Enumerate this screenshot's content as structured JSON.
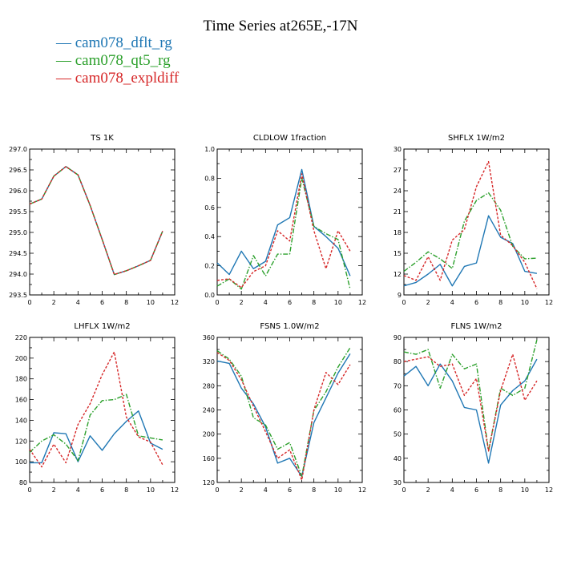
{
  "title": "Time Series at265E,-17N",
  "legend": [
    {
      "label": "— cam078_dflt_rg",
      "color": "#1f77b4"
    },
    {
      "label": "— cam078_qt5_rg",
      "color": "#2ca02c"
    },
    {
      "label": "— cam078_expldiff",
      "color": "#d62728"
    }
  ],
  "chart_data": [
    {
      "type": "line",
      "title": "TS   1K",
      "x": [
        0,
        1,
        2,
        3,
        4,
        5,
        6,
        7,
        8,
        9,
        10,
        11
      ],
      "xlim": [
        0,
        12
      ],
      "xticks": [
        0,
        2,
        4,
        6,
        8,
        10,
        12
      ],
      "ylim": [
        293.5,
        297.0
      ],
      "yticks": [
        "293.5",
        "294.0",
        "294.5",
        "295.0",
        "295.5",
        "296.0",
        "296.5",
        "297.0"
      ],
      "series": [
        {
          "name": "cam078_dflt_rg",
          "color": "#1f77b4",
          "style": "solid",
          "values": [
            295.68,
            295.8,
            296.35,
            296.58,
            296.38,
            295.65,
            294.83,
            293.99,
            294.08,
            294.2,
            294.33,
            295.03
          ]
        },
        {
          "name": "cam078_qt5_rg",
          "color": "#2ca02c",
          "style": "dashdot",
          "values": [
            295.68,
            295.8,
            296.35,
            296.58,
            296.38,
            295.65,
            294.83,
            293.99,
            294.08,
            294.2,
            294.33,
            295.03
          ]
        },
        {
          "name": "cam078_expldiff",
          "color": "#d62728",
          "style": "dash",
          "values": [
            295.68,
            295.8,
            296.35,
            296.58,
            296.38,
            295.65,
            294.83,
            293.99,
            294.08,
            294.2,
            294.33,
            295.03
          ]
        }
      ]
    },
    {
      "type": "line",
      "title": "CLDLOW   1fraction",
      "x": [
        0,
        1,
        2,
        3,
        4,
        5,
        6,
        7,
        8,
        9,
        10,
        11
      ],
      "xlim": [
        0,
        12
      ],
      "xticks": [
        0,
        2,
        4,
        6,
        8,
        10,
        12
      ],
      "ylim": [
        0.0,
        1.0
      ],
      "yticks": [
        "0.0",
        "0.2",
        "0.4",
        "0.6",
        "0.8",
        "1.0"
      ],
      "series": [
        {
          "name": "cam078_dflt_rg",
          "color": "#1f77b4",
          "style": "solid",
          "values": [
            0.22,
            0.14,
            0.3,
            0.18,
            0.23,
            0.48,
            0.53,
            0.86,
            0.47,
            0.4,
            0.32,
            0.13
          ]
        },
        {
          "name": "cam078_qt5_rg",
          "color": "#2ca02c",
          "style": "dashdot",
          "values": [
            0.06,
            0.11,
            0.04,
            0.27,
            0.13,
            0.28,
            0.28,
            0.8,
            0.47,
            0.42,
            0.38,
            0.04
          ]
        },
        {
          "name": "cam078_expldiff",
          "color": "#d62728",
          "style": "dash",
          "values": [
            0.1,
            0.11,
            0.05,
            0.16,
            0.2,
            0.44,
            0.37,
            0.83,
            0.44,
            0.18,
            0.44,
            0.3
          ]
        }
      ]
    },
    {
      "type": "line",
      "title": "SHFLX   1W/m2",
      "x": [
        0,
        1,
        2,
        3,
        4,
        5,
        6,
        7,
        8,
        9,
        10,
        11
      ],
      "xlim": [
        0,
        12
      ],
      "xticks": [
        0,
        2,
        4,
        6,
        8,
        10,
        12
      ],
      "ylim": [
        9,
        30
      ],
      "yticks": [
        "9",
        "12",
        "15",
        "18",
        "21",
        "24",
        "27",
        "30"
      ],
      "series": [
        {
          "name": "cam078_dflt_rg",
          "color": "#1f77b4",
          "style": "solid",
          "values": [
            10.3,
            10.8,
            12.0,
            13.4,
            10.3,
            13.1,
            13.6,
            20.4,
            17.3,
            16.4,
            12.4,
            12.1
          ]
        },
        {
          "name": "cam078_qt5_rg",
          "color": "#2ca02c",
          "style": "dashdot",
          "values": [
            12.4,
            13.7,
            15.2,
            14.2,
            12.8,
            19.6,
            22.6,
            23.7,
            21.2,
            16.0,
            14.2,
            14.3
          ]
        },
        {
          "name": "cam078_expldiff",
          "color": "#d62728",
          "style": "dash",
          "values": [
            11.8,
            11.1,
            14.5,
            11.1,
            16.9,
            18.4,
            24.6,
            28.2,
            17.6,
            16.1,
            13.7,
            9.9
          ]
        }
      ]
    },
    {
      "type": "line",
      "title": "LHFLX   1W/m2",
      "x": [
        0,
        1,
        2,
        3,
        4,
        5,
        6,
        7,
        8,
        9,
        10,
        11
      ],
      "xlim": [
        0,
        12
      ],
      "xticks": [
        0,
        2,
        4,
        6,
        8,
        10,
        12
      ],
      "ylim": [
        80,
        220
      ],
      "yticks": [
        "80",
        "100",
        "120",
        "140",
        "160",
        "180",
        "200",
        "220"
      ],
      "series": [
        {
          "name": "cam078_dflt_rg",
          "color": "#1f77b4",
          "style": "solid",
          "values": [
            99,
            99,
            128,
            127,
            100,
            125,
            111,
            127,
            139,
            149,
            118,
            112
          ]
        },
        {
          "name": "cam078_qt5_rg",
          "color": "#2ca02c",
          "style": "dashdot",
          "values": [
            109,
            120,
            126,
            117,
            101,
            145,
            159,
            160,
            165,
            125,
            123,
            121
          ]
        },
        {
          "name": "cam078_expldiff",
          "color": "#d62728",
          "style": "dash",
          "values": [
            112,
            95,
            117,
            99,
            136,
            156,
            184,
            206,
            143,
            124,
            119,
            97
          ]
        }
      ]
    },
    {
      "type": "line",
      "title": "FSNS   1.0W/m2",
      "x": [
        0,
        1,
        2,
        3,
        4,
        5,
        6,
        7,
        8,
        9,
        10,
        11
      ],
      "xlim": [
        0,
        12
      ],
      "xticks": [
        0,
        2,
        4,
        6,
        8,
        10,
        12
      ],
      "ylim": [
        120,
        360
      ],
      "yticks": [
        "120",
        "160",
        "200",
        "240",
        "280",
        "320",
        "360"
      ],
      "series": [
        {
          "name": "cam078_dflt_rg",
          "color": "#1f77b4",
          "style": "solid",
          "values": [
            321,
            317,
            276,
            250,
            212,
            152,
            160,
            130,
            219,
            260,
            301,
            333
          ]
        },
        {
          "name": "cam078_qt5_rg",
          "color": "#2ca02c",
          "style": "dashdot",
          "values": [
            338,
            324,
            296,
            227,
            215,
            175,
            186,
            130,
            239,
            270,
            311,
            343
          ]
        },
        {
          "name": "cam078_expldiff",
          "color": "#d62728",
          "style": "dash",
          "values": [
            335,
            322,
            290,
            246,
            204,
            160,
            174,
            124,
            240,
            302,
            282,
            315
          ]
        }
      ]
    },
    {
      "type": "line",
      "title": "FLNS   1W/m2",
      "x": [
        0,
        1,
        2,
        3,
        4,
        5,
        6,
        7,
        8,
        9,
        10,
        11
      ],
      "xlim": [
        0,
        12
      ],
      "xticks": [
        0,
        2,
        4,
        6,
        8,
        10,
        12
      ],
      "ylim": [
        30,
        90
      ],
      "yticks": [
        "30",
        "40",
        "50",
        "60",
        "70",
        "80",
        "90"
      ],
      "series": [
        {
          "name": "cam078_dflt_rg",
          "color": "#1f77b4",
          "style": "solid",
          "values": [
            74,
            78,
            70,
            79,
            72,
            61,
            60,
            38,
            62,
            68,
            72,
            81
          ]
        },
        {
          "name": "cam078_qt5_rg",
          "color": "#2ca02c",
          "style": "dashdot",
          "values": [
            84,
            83,
            85,
            69,
            83,
            77,
            79,
            43,
            69,
            66,
            69,
            89
          ]
        },
        {
          "name": "cam078_expldiff",
          "color": "#d62728",
          "style": "dash",
          "values": [
            80,
            81,
            82,
            78,
            79,
            66,
            73,
            43,
            68,
            83,
            64,
            72
          ]
        }
      ]
    }
  ]
}
